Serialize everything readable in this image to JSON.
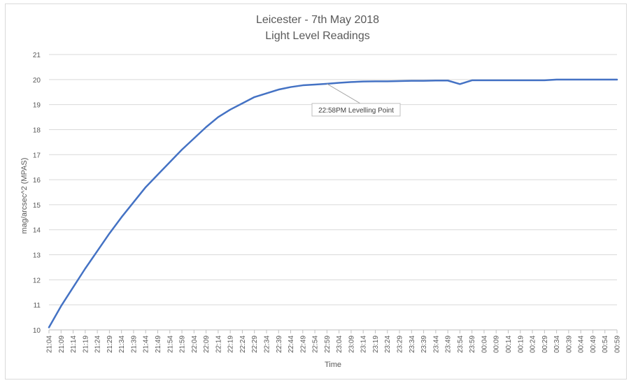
{
  "chart_data": {
    "type": "line",
    "title": "Leicester - 7th May 2018",
    "subtitle": "Light Level Readings",
    "xlabel": "Time",
    "ylabel": "mag/arcsec^2 (MPAS)",
    "ylim": [
      10,
      21
    ],
    "yticks": [
      10,
      11,
      12,
      13,
      14,
      15,
      16,
      17,
      18,
      19,
      20,
      21
    ],
    "grid": true,
    "legend": "none",
    "line_color": "#4472c4",
    "categories": [
      "21:04",
      "21:09",
      "21:14",
      "21:19",
      "21:24",
      "21:29",
      "21:34",
      "21:39",
      "21:44",
      "21:49",
      "21:54",
      "21:59",
      "22:04",
      "22:09",
      "22:14",
      "22:19",
      "22:24",
      "22:29",
      "22:34",
      "22:39",
      "22:44",
      "22:49",
      "22:54",
      "22:59",
      "23:04",
      "23:09",
      "23:14",
      "23:19",
      "23:24",
      "23:29",
      "23:34",
      "23:39",
      "23:44",
      "23:49",
      "23:54",
      "23:59",
      "00:04",
      "00:09",
      "00:14",
      "00:19",
      "00:24",
      "00:29",
      "00:34",
      "00:39",
      "00:44",
      "00:49",
      "00:54",
      "00:59"
    ],
    "series": [
      {
        "values": [
          10.1,
          10.95,
          11.7,
          12.45,
          13.15,
          13.85,
          14.5,
          15.1,
          15.7,
          16.2,
          16.7,
          17.2,
          17.65,
          18.1,
          18.5,
          18.8,
          19.05,
          19.3,
          19.45,
          19.6,
          19.7,
          19.77,
          19.8,
          19.83,
          19.87,
          19.9,
          19.92,
          19.93,
          19.93,
          19.94,
          19.95,
          19.95,
          19.96,
          19.96,
          19.82,
          19.97,
          19.97,
          19.97,
          19.97,
          19.97,
          19.97,
          19.97,
          20.0,
          20.0,
          20.0,
          20.0,
          20.0,
          20.0
        ]
      }
    ],
    "annotations": [
      {
        "text": "22:58PM Levelling Point",
        "x": "22:59",
        "y": 19.83
      }
    ]
  }
}
